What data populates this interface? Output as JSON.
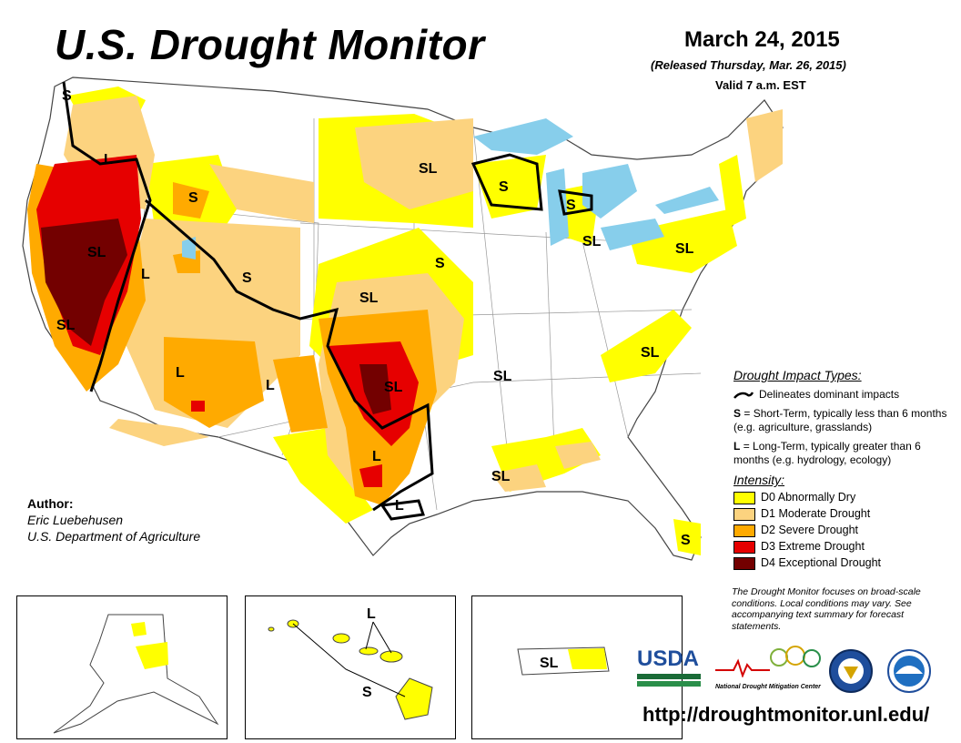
{
  "header": {
    "title": "U.S. Drought Monitor",
    "date": "March 24, 2015",
    "released": "(Released Thursday, Mar. 26, 2015)",
    "valid": "Valid 7 a.m. EST"
  },
  "author": {
    "heading": "Author:",
    "name": "Eric Luebehusen",
    "organization": "U.S. Department of Agriculture"
  },
  "impact_types": {
    "heading": "Drought Impact Types:",
    "delineates": "Delineates dominant impacts",
    "short_term_key": "S",
    "short_term_desc": "= Short-Term, typically less than 6 months (e.g. agriculture, grasslands)",
    "long_term_key": "L",
    "long_term_desc": "= Long-Term, typically greater than 6 months (e.g. hydrology, ecology)"
  },
  "intensity": {
    "heading": "Intensity:",
    "levels": [
      {
        "label": "D0 Abnormally Dry",
        "color": "#ffff00"
      },
      {
        "label": "D1 Moderate Drought",
        "color": "#fcd37f"
      },
      {
        "label": "D2 Severe Drought",
        "color": "#ffaa00"
      },
      {
        "label": "D3 Extreme Drought",
        "color": "#e60000"
      },
      {
        "label": "D4 Exceptional Drought",
        "color": "#730000"
      }
    ]
  },
  "map_labels": {
    "nw_s": "S",
    "pnw_l": "L",
    "id_s": "S",
    "nv_sl": "SL",
    "ut_l": "L",
    "ca_sl": "SL",
    "wy_s": "S",
    "az_l": "L",
    "nm_l": "L",
    "co_sl": "SL",
    "nd_sl": "SL",
    "ne_s": "S",
    "ok_sl": "SL",
    "tx_l": "L",
    "tx_l2": "L",
    "wi_s": "S",
    "mi_s": "S",
    "mi_sl": "SL",
    "ny_sl": "SL",
    "va_sl": "SL",
    "ar_sl": "SL",
    "la_sl": "SL",
    "fl_s": "S",
    "hi_l": "L",
    "hi_s": "S",
    "pr_sl": "SL"
  },
  "disclaimer": "The Drought Monitor focuses on broad-scale conditions. Local conditions may vary. See accompanying text summary for forecast statements.",
  "logos": {
    "usda": "USDA",
    "ndmc_line1": "National",
    "ndmc_line2": "Drought Mitigation Center"
  },
  "url": "http://droughtmonitor.unl.edu/"
}
